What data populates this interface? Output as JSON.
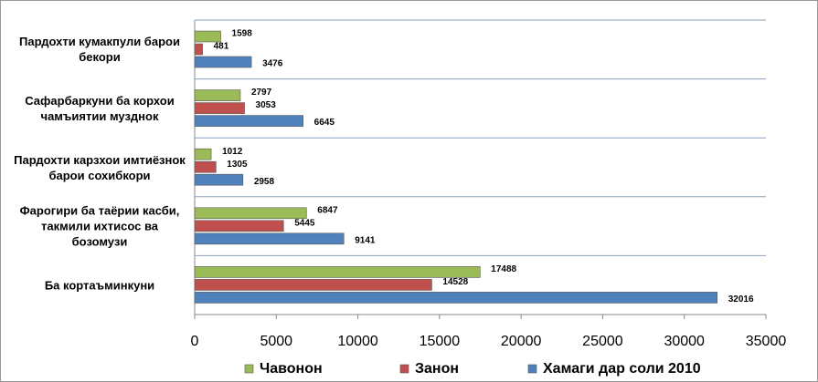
{
  "chart_data": {
    "type": "bar",
    "orientation": "horizontal",
    "categories": [
      "Пардохти кумакпули барои бекори",
      "Сафарбаркуни ба корхои чамъиятии музднок",
      "Пардохти карзхои имтиёзнок барои сохибкори",
      "Фарогири ба таёрии касби, такмили ихтисос ва бозомузи",
      "Ба кортаъминкуни"
    ],
    "series": [
      {
        "name": "Чавонон",
        "color": "#9bbb59",
        "values": [
          1598,
          2797,
          1012,
          6847,
          17488
        ]
      },
      {
        "name": "Занон",
        "color": "#c0504d",
        "values": [
          481,
          3053,
          1305,
          5445,
          14528
        ]
      },
      {
        "name": "Хамаги дар соли 2010",
        "color": "#4f81bd",
        "values": [
          3476,
          6645,
          2958,
          9141,
          32016
        ]
      }
    ],
    "xlim": [
      0,
      35000
    ],
    "xticks": [
      0,
      5000,
      10000,
      15000,
      20000,
      25000,
      30000,
      35000
    ],
    "legend": "bottom"
  }
}
